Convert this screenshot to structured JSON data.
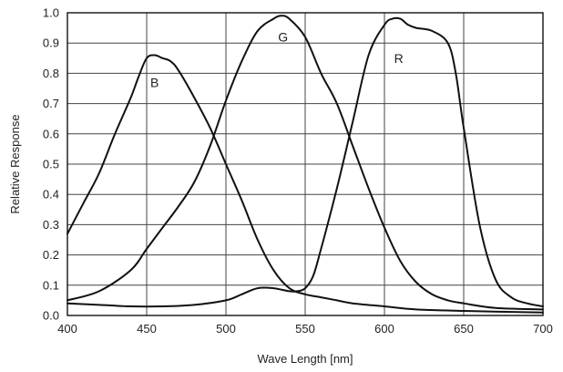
{
  "chart_data": {
    "type": "line",
    "title": "",
    "xlabel": "Wave Length [nm]",
    "ylabel": "Relative Response",
    "xlim": [
      400,
      700
    ],
    "ylim": [
      0,
      1.0
    ],
    "x_ticks": [
      "400",
      "450",
      "500",
      "550",
      "600",
      "650",
      "700"
    ],
    "y_ticks": [
      "0.0",
      "0.1",
      "0.2",
      "0.3",
      "0.4",
      "0.5",
      "0.6",
      "0.7",
      "0.8",
      "0.9",
      "1.0"
    ],
    "grid": true,
    "series": [
      {
        "name": "B",
        "label_at": [
          455,
          0.77
        ],
        "x": [
          400,
          410,
          420,
          430,
          440,
          445,
          450,
          455,
          460,
          465,
          470,
          480,
          490,
          500,
          510,
          520,
          530,
          540,
          550,
          560,
          570,
          580,
          600,
          620,
          650,
          700
        ],
        "y": [
          0.27,
          0.37,
          0.47,
          0.6,
          0.72,
          0.79,
          0.85,
          0.86,
          0.85,
          0.84,
          0.81,
          0.72,
          0.62,
          0.5,
          0.38,
          0.25,
          0.15,
          0.09,
          0.07,
          0.06,
          0.05,
          0.04,
          0.03,
          0.02,
          0.015,
          0.01
        ]
      },
      {
        "name": "G",
        "label_at": [
          536,
          0.92
        ],
        "x": [
          400,
          420,
          440,
          450,
          460,
          470,
          480,
          490,
          500,
          510,
          520,
          530,
          535,
          540,
          550,
          560,
          570,
          580,
          590,
          600,
          610,
          620,
          630,
          640,
          650,
          670,
          700
        ],
        "y": [
          0.05,
          0.08,
          0.15,
          0.22,
          0.29,
          0.36,
          0.44,
          0.56,
          0.71,
          0.84,
          0.94,
          0.98,
          0.99,
          0.98,
          0.92,
          0.8,
          0.7,
          0.56,
          0.42,
          0.29,
          0.18,
          0.11,
          0.07,
          0.05,
          0.04,
          0.025,
          0.02
        ]
      },
      {
        "name": "R",
        "label_at": [
          609,
          0.85
        ],
        "x": [
          400,
          420,
          440,
          460,
          480,
          500,
          510,
          520,
          530,
          540,
          545,
          550,
          555,
          560,
          570,
          580,
          590,
          600,
          605,
          610,
          615,
          620,
          630,
          640,
          645,
          650,
          660,
          670,
          680,
          690,
          700
        ],
        "y": [
          0.04,
          0.035,
          0.03,
          0.03,
          0.035,
          0.05,
          0.07,
          0.09,
          0.09,
          0.08,
          0.08,
          0.09,
          0.13,
          0.22,
          0.42,
          0.64,
          0.86,
          0.96,
          0.98,
          0.98,
          0.96,
          0.95,
          0.94,
          0.9,
          0.8,
          0.62,
          0.3,
          0.12,
          0.06,
          0.04,
          0.03
        ]
      }
    ]
  }
}
